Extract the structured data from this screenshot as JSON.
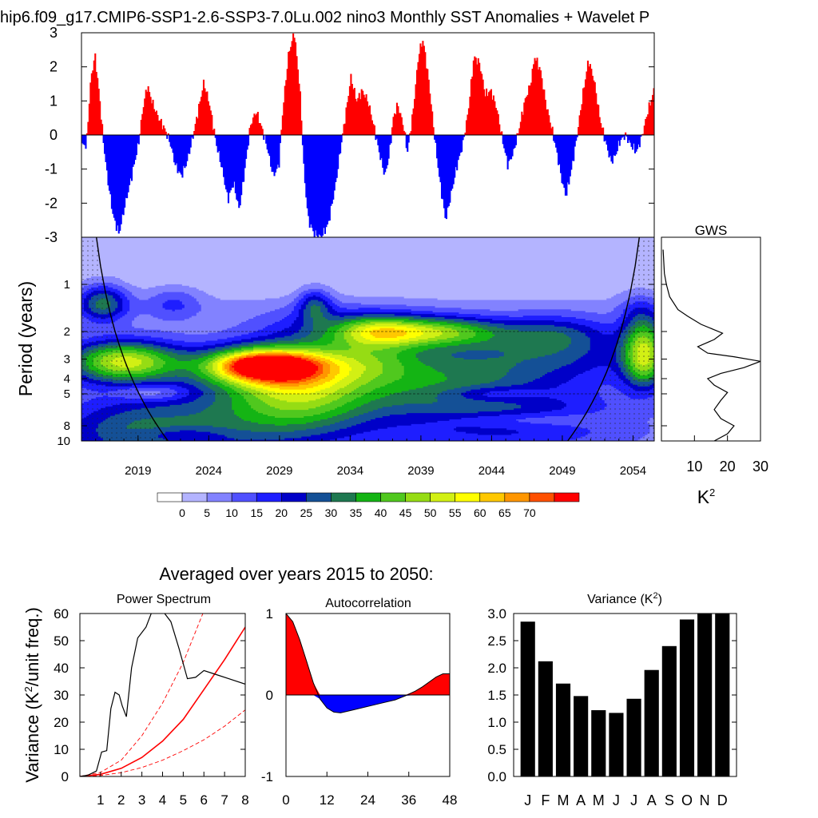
{
  "page": {
    "title": "hip6.f09_g17.CMIP6-SSP1-2.6-SSP3-7.0Lu.002 nino3 Monthly SST Anomalies + Wavelet P",
    "avg_title": "Averaged over years 2015 to 2050:"
  },
  "colors": {
    "positive": "#ff0000",
    "negative": "#0000ff",
    "bar": "#000000",
    "line": "#000000",
    "red_line": "#ff0000",
    "levels": [
      "#ffffff",
      "#b4b4ff",
      "#8282ff",
      "#5050ff",
      "#1e1eff",
      "#0000c8",
      "#145096",
      "#1e7850",
      "#14b414",
      "#50c81e",
      "#96dc14",
      "#d2f014",
      "#ffff00",
      "#ffc800",
      "#ff9600",
      "#ff5000",
      "#ff0000"
    ]
  },
  "chart_data": [
    {
      "type": "area",
      "name": "nino3-sst-anomalies",
      "title": "Monthly SST Anomalies",
      "ylim": [
        -3,
        3
      ],
      "y_ticks": [
        "3",
        "2",
        "1",
        "0",
        "-1",
        "-2",
        "-3"
      ],
      "xlim": [
        2015.0,
        2055.5
      ],
      "keypoints": [
        [
          2015.0,
          -0.3
        ],
        [
          2015.3,
          -0.3
        ],
        [
          2015.6,
          1.6
        ],
        [
          2015.9,
          2.35
        ],
        [
          2016.2,
          1.2
        ],
        [
          2016.5,
          -0.2
        ],
        [
          2016.8,
          -1.3
        ],
        [
          2017.2,
          -2.4
        ],
        [
          2017.6,
          -2.9
        ],
        [
          2018.0,
          -2.1
        ],
        [
          2018.5,
          -1.2
        ],
        [
          2019.0,
          -0.2
        ],
        [
          2019.3,
          0.8
        ],
        [
          2019.6,
          1.45
        ],
        [
          2020.0,
          0.9
        ],
        [
          2020.4,
          0.5
        ],
        [
          2020.8,
          0.2
        ],
        [
          2021.2,
          -0.2
        ],
        [
          2021.6,
          -0.9
        ],
        [
          2022.0,
          -1.2
        ],
        [
          2022.4,
          -0.8
        ],
        [
          2022.8,
          -0.1
        ],
        [
          2023.2,
          0.7
        ],
        [
          2023.6,
          1.55
        ],
        [
          2024.0,
          0.9
        ],
        [
          2024.5,
          -0.3
        ],
        [
          2024.9,
          -1.0
        ],
        [
          2025.3,
          -1.9
        ],
        [
          2025.7,
          -1.4
        ],
        [
          2026.1,
          -2.2
        ],
        [
          2026.5,
          -1.0
        ],
        [
          2026.9,
          0.3
        ],
        [
          2027.3,
          0.7
        ],
        [
          2027.7,
          0.2
        ],
        [
          2028.1,
          -0.4
        ],
        [
          2028.5,
          -1.2
        ],
        [
          2028.9,
          -0.9
        ],
        [
          2029.2,
          0.8
        ],
        [
          2029.6,
          2.4
        ],
        [
          2030.0,
          3.0
        ],
        [
          2030.4,
          1.3
        ],
        [
          2030.7,
          -1.2
        ],
        [
          2031.0,
          -2.5
        ],
        [
          2031.4,
          -2.9
        ],
        [
          2031.9,
          -3.0
        ],
        [
          2032.4,
          -2.6
        ],
        [
          2032.9,
          -1.5
        ],
        [
          2033.3,
          -0.3
        ],
        [
          2033.7,
          0.8
        ],
        [
          2034.0,
          1.7
        ],
        [
          2034.4,
          1.0
        ],
        [
          2034.8,
          1.3
        ],
        [
          2035.2,
          1.0
        ],
        [
          2035.6,
          0.3
        ],
        [
          2036.0,
          -0.5
        ],
        [
          2036.4,
          -1.2
        ],
        [
          2036.7,
          -0.6
        ],
        [
          2037.0,
          0.5
        ],
        [
          2037.3,
          0.9
        ],
        [
          2037.7,
          0.3
        ],
        [
          2038.0,
          -0.5
        ],
        [
          2038.4,
          0.7
        ],
        [
          2038.8,
          2.4
        ],
        [
          2039.1,
          2.8
        ],
        [
          2039.5,
          1.6
        ],
        [
          2039.9,
          0.0
        ],
        [
          2040.3,
          -1.4
        ],
        [
          2040.7,
          -2.5
        ],
        [
          2041.1,
          -1.7
        ],
        [
          2041.5,
          -0.9
        ],
        [
          2041.9,
          -0.3
        ],
        [
          2042.3,
          0.7
        ],
        [
          2042.7,
          2.3
        ],
        [
          2043.1,
          2.1
        ],
        [
          2043.5,
          1.2
        ],
        [
          2043.9,
          1.3
        ],
        [
          2044.3,
          0.8
        ],
        [
          2044.7,
          -0.1
        ],
        [
          2045.1,
          -0.9
        ],
        [
          2045.5,
          -0.5
        ],
        [
          2045.9,
          0.2
        ],
        [
          2046.3,
          1.0
        ],
        [
          2046.7,
          1.5
        ],
        [
          2047.0,
          2.3
        ],
        [
          2047.4,
          1.9
        ],
        [
          2047.8,
          0.9
        ],
        [
          2048.2,
          0.2
        ],
        [
          2048.6,
          -0.6
        ],
        [
          2048.9,
          -1.3
        ],
        [
          2049.2,
          -1.8
        ],
        [
          2049.6,
          -1.0
        ],
        [
          2050.0,
          0.0
        ],
        [
          2050.4,
          1.2
        ],
        [
          2050.8,
          2.2
        ],
        [
          2051.2,
          1.6
        ],
        [
          2051.6,
          0.5
        ],
        [
          2052.0,
          -0.2
        ],
        [
          2052.4,
          -0.8
        ],
        [
          2052.7,
          -0.6
        ],
        [
          2053.0,
          -0.2
        ],
        [
          2053.4,
          0.0
        ],
        [
          2053.8,
          -0.3
        ],
        [
          2054.2,
          -0.5
        ],
        [
          2054.6,
          0.0
        ],
        [
          2055.0,
          0.7
        ],
        [
          2055.5,
          1.4
        ]
      ]
    },
    {
      "type": "heatmap",
      "name": "wavelet-power",
      "ylabel": "Period (years)",
      "x_ticks": [
        2019,
        2024,
        2029,
        2034,
        2039,
        2044,
        2049,
        2054
      ],
      "y_ticks": [
        1,
        2,
        3,
        4,
        5,
        8,
        10
      ],
      "period_range": [
        0.5,
        10
      ],
      "time_range": [
        2015.0,
        2055.5
      ],
      "colorbar_ticks": [
        "0",
        "5",
        "10",
        "15",
        "20",
        "25",
        "30",
        "35",
        "40",
        "45",
        "50",
        "55",
        "60",
        "65",
        "70"
      ],
      "background_level": 1,
      "blobs": [
        {
          "t": 2016.5,
          "p": 1.3,
          "wt": 1.8,
          "wp": 0.28,
          "v": 27
        },
        {
          "t": 2021.5,
          "p": 1.3,
          "wt": 2.0,
          "wp": 0.25,
          "v": 11
        },
        {
          "t": 2031.5,
          "p": 1.35,
          "wt": 1.2,
          "wp": 0.25,
          "v": 20
        },
        {
          "t": 2054.5,
          "p": 1.45,
          "wt": 1.5,
          "wp": 0.3,
          "v": 9
        },
        {
          "t": 2033.5,
          "p": 1.9,
          "wt": 5.5,
          "wp": 0.3,
          "v": 16
        },
        {
          "t": 2040.5,
          "p": 2.0,
          "wt": 4.5,
          "wp": 0.22,
          "v": 33
        },
        {
          "t": 2036.0,
          "p": 2.0,
          "wt": 3.0,
          "wp": 0.22,
          "v": 24
        },
        {
          "t": 2048.5,
          "p": 2.05,
          "wt": 4.0,
          "wp": 0.28,
          "v": 17
        },
        {
          "t": 2054.8,
          "p": 2.2,
          "wt": 1.5,
          "wp": 0.35,
          "v": 26
        },
        {
          "t": 2018.0,
          "p": 3.1,
          "wt": 4.0,
          "wp": 0.3,
          "v": 45
        },
        {
          "t": 2028.0,
          "p": 3.3,
          "wt": 4.5,
          "wp": 0.28,
          "v": 57
        },
        {
          "t": 2028.0,
          "p": 3.3,
          "wt": 2.8,
          "wp": 0.16,
          "v": 22
        },
        {
          "t": 2035.5,
          "p": 3.0,
          "wt": 4.0,
          "wp": 0.35,
          "v": 18
        },
        {
          "t": 2047.5,
          "p": 2.9,
          "wt": 8.0,
          "wp": 0.35,
          "v": 16
        },
        {
          "t": 2054.8,
          "p": 3.3,
          "wt": 1.5,
          "wp": 0.35,
          "v": 30
        },
        {
          "t": 2030.5,
          "p": 4.6,
          "wt": 5.0,
          "wp": 0.55,
          "v": 33
        },
        {
          "t": 2040.0,
          "p": 4.2,
          "wt": 7.0,
          "wp": 0.45,
          "v": 19
        },
        {
          "t": 2045.0,
          "p": 7.0,
          "wt": 9.0,
          "wp": 0.55,
          "v": 17
        },
        {
          "t": 2025.0,
          "p": 7.5,
          "wt": 9.0,
          "wp": 0.6,
          "v": 20
        },
        {
          "t": 2018.0,
          "p": 9.0,
          "wt": 5.0,
          "wp": 0.45,
          "v": 14
        }
      ],
      "holes": [
        {
          "t": 2020.0,
          "p": 4.9,
          "wt": 2.6,
          "wp": 0.12,
          "v": 12
        },
        {
          "t": 2044.0,
          "p": 5.0,
          "wt": 3.5,
          "wp": 0.12,
          "v": 12
        },
        {
          "t": 2046.0,
          "p": 7.3,
          "wt": 6.0,
          "wp": 0.12,
          "v": 10
        },
        {
          "t": 2022.0,
          "p": 9.1,
          "wt": 3.0,
          "wp": 0.1,
          "v": 8
        }
      ]
    },
    {
      "type": "line",
      "name": "gws",
      "title": "GWS",
      "xlabel": "K",
      "xlabel_sup": "2",
      "x_ticks": [
        "10",
        "20",
        "30"
      ],
      "xlim": [
        0,
        30
      ],
      "points": [
        [
          0.5,
          0.6
        ],
        [
          0.9,
          0.85
        ],
        [
          1.5,
          1.0
        ],
        [
          2.5,
          1.2
        ],
        [
          5,
          1.45
        ],
        [
          8,
          1.6
        ],
        [
          12,
          1.8
        ],
        [
          16,
          1.95
        ],
        [
          18.5,
          2.05
        ],
        [
          16,
          2.25
        ],
        [
          11,
          2.5
        ],
        [
          14,
          2.75
        ],
        [
          22,
          2.9
        ],
        [
          30,
          3.1
        ],
        [
          25,
          3.4
        ],
        [
          18,
          3.7
        ],
        [
          14,
          4.0
        ],
        [
          16,
          4.4
        ],
        [
          20,
          4.9
        ],
        [
          18,
          5.5
        ],
        [
          16,
          6.3
        ],
        [
          18,
          7.2
        ],
        [
          22,
          8.0
        ],
        [
          20,
          9.0
        ],
        [
          16,
          10.0
        ]
      ]
    },
    {
      "type": "line",
      "name": "power-spectrum",
      "title": "Power Spectrum",
      "ylabel": "Variance (K",
      "ylabel_sup": "2",
      "ylabel_tail": "/unit freq.)",
      "xlim": [
        0,
        8
      ],
      "ylim": [
        0,
        60
      ],
      "x_ticks": [
        "1",
        "2",
        "3",
        "4",
        "5",
        "6",
        "7",
        "8"
      ],
      "y_ticks": [
        "0",
        "10",
        "20",
        "30",
        "40",
        "50",
        "60"
      ],
      "series": [
        {
          "name": "spectrum",
          "points": [
            [
              0,
              0
            ],
            [
              0.4,
              0.5
            ],
            [
              0.8,
              2
            ],
            [
              1.05,
              9
            ],
            [
              1.3,
              9.5
            ],
            [
              1.5,
              25
            ],
            [
              1.7,
              31
            ],
            [
              1.9,
              30
            ],
            [
              2.05,
              26
            ],
            [
              2.25,
              22
            ],
            [
              2.5,
              40
            ],
            [
              2.8,
              51
            ],
            [
              3.2,
              55
            ],
            [
              3.6,
              63
            ],
            [
              4.0,
              61
            ],
            [
              4.4,
              57
            ],
            [
              4.8,
              47
            ],
            [
              5.2,
              36
            ],
            [
              5.6,
              36.5
            ],
            [
              6.0,
              39
            ],
            [
              6.6,
              37.5
            ],
            [
              7.2,
              36
            ],
            [
              8.0,
              34
            ]
          ]
        },
        {
          "name": "red-noise",
          "points": [
            [
              0,
              0
            ],
            [
              1,
              0.8
            ],
            [
              2,
              3
            ],
            [
              3,
              7
            ],
            [
              4,
              13
            ],
            [
              5,
              21
            ],
            [
              6,
              32
            ],
            [
              7,
              43
            ],
            [
              8,
              55
            ]
          ]
        },
        {
          "name": "upper-95",
          "points": [
            [
              0,
              0
            ],
            [
              1,
              1.5
            ],
            [
              2,
              6
            ],
            [
              3,
              15
            ],
            [
              4,
              27
            ],
            [
              5,
              42
            ],
            [
              6,
              61
            ]
          ]
        },
        {
          "name": "lower-5",
          "points": [
            [
              0,
              0
            ],
            [
              1,
              0.35
            ],
            [
              2,
              1.4
            ],
            [
              3,
              3.3
            ],
            [
              4,
              6
            ],
            [
              5,
              9.5
            ],
            [
              6,
              13.5
            ],
            [
              7,
              18.5
            ],
            [
              8,
              24.5
            ]
          ]
        }
      ]
    },
    {
      "type": "area",
      "name": "autocorrelation",
      "title": "Autocorrelation",
      "xlim": [
        0,
        48
      ],
      "ylim": [
        -1,
        1
      ],
      "x_ticks": [
        "0",
        "12",
        "24",
        "36",
        "48"
      ],
      "y_ticks": [
        "1",
        "0",
        "-1"
      ],
      "points": [
        [
          0,
          1.0
        ],
        [
          2,
          0.9
        ],
        [
          4,
          0.68
        ],
        [
          6,
          0.42
        ],
        [
          8,
          0.15
        ],
        [
          10,
          -0.05
        ],
        [
          12,
          -0.16
        ],
        [
          14,
          -0.21
        ],
        [
          16,
          -0.22
        ],
        [
          18,
          -0.2
        ],
        [
          20,
          -0.18
        ],
        [
          24,
          -0.14
        ],
        [
          28,
          -0.1
        ],
        [
          32,
          -0.06
        ],
        [
          35,
          -0.01
        ],
        [
          38,
          0.05
        ],
        [
          40,
          0.1
        ],
        [
          42,
          0.16
        ],
        [
          44,
          0.22
        ],
        [
          46,
          0.26
        ],
        [
          48,
          0.26
        ]
      ]
    },
    {
      "type": "bar",
      "name": "monthly-variance",
      "title": "Variance (K",
      "title_sup": "2",
      "title_tail": ")",
      "categories": [
        "J",
        "F",
        "M",
        "A",
        "M",
        "J",
        "J",
        "A",
        "S",
        "O",
        "N",
        "D"
      ],
      "values": [
        2.85,
        2.12,
        1.71,
        1.48,
        1.22,
        1.17,
        1.43,
        1.96,
        2.4,
        2.89,
        3.0,
        3.0
      ],
      "ylim": [
        0,
        3
      ],
      "y_ticks": [
        "3.0",
        "2.5",
        "2.0",
        "1.5",
        "1.0",
        "0.5",
        "0.0"
      ]
    }
  ]
}
